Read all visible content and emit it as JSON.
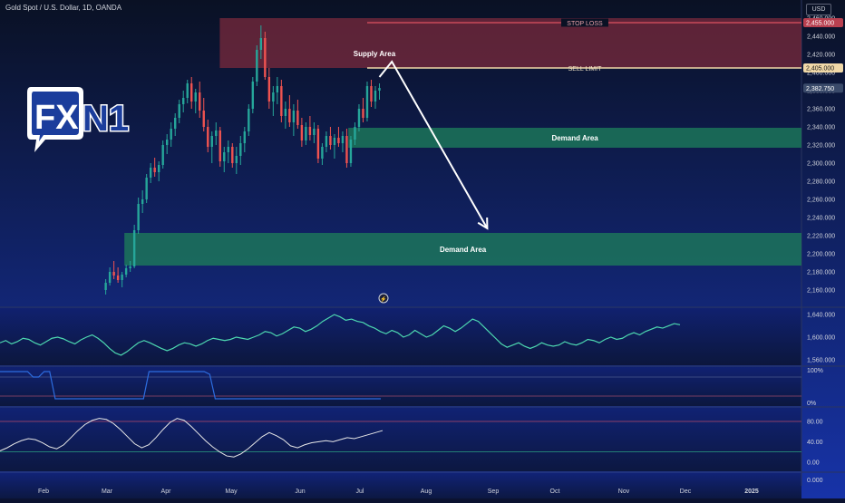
{
  "header": {
    "symbol": "Gold Spot / U.S. Dollar, 1D, OANDA",
    "currency": "USD"
  },
  "logo": {
    "text_left": "FX",
    "text_right": "N1"
  },
  "colors": {
    "background_top": "#0a1124",
    "background_bottom": "#1733a8",
    "candle_up": "#26a69a",
    "candle_down": "#ef5350",
    "supply": "#7a2a3c",
    "demand": "#1d7a5a",
    "stop_loss": "#c94a5a",
    "sell_limit": "#f0d8a8",
    "arrow": "#ffffff",
    "indicator_line": "#4dd8b0"
  },
  "chart_data": [
    {
      "type": "candlestick",
      "ylim": [
        2150,
        2470
      ],
      "yticks": [
        2160,
        2180,
        2200,
        2220,
        2240,
        2260,
        2280,
        2300,
        2320,
        2340,
        2360,
        2380,
        2400,
        2420,
        2440,
        2460
      ],
      "ytick_labels": [
        "2,160.000",
        "2,180.000",
        "2,200.000",
        "2,220.000",
        "2,240.000",
        "2,260.000",
        "2,280.000",
        "2,300.000",
        "2,320.000",
        "2,340.000",
        "2,360.000",
        "2,380.000",
        "2,400.000",
        "2,420.000",
        "2,440.000",
        "2,460.000"
      ],
      "current_price": {
        "value": 2382.75,
        "label": "2,382.750"
      },
      "levels": [
        {
          "name": "stop_loss",
          "value": 2455.0,
          "label": "2,455.000",
          "text": "STOP LOSS"
        },
        {
          "name": "sell_limit",
          "value": 2405.0,
          "label": "2,405.000",
          "text": "SELL LIMIT"
        }
      ],
      "zones": [
        {
          "kind": "supply",
          "text": "Supply Area",
          "low": 2405,
          "high": 2460,
          "start": "2024-04-26"
        },
        {
          "kind": "demand",
          "text": "Demand Area",
          "low": 2317,
          "high": 2339,
          "start": "2024-06-27"
        },
        {
          "kind": "demand",
          "text": "Demand Area",
          "low": 2187,
          "high": 2223,
          "start": "2024-03-11"
        }
      ],
      "projection": [
        {
          "date": "2024-07-12",
          "price": 2395
        },
        {
          "date": "2024-07-18",
          "price": 2412
        },
        {
          "date": "2024-09-02",
          "price": 2228
        }
      ],
      "series": [
        {
          "ohlc": [
            [
              2160,
              2172,
              2155,
              2168
            ],
            [
              2168,
              2185,
              2165,
              2180
            ],
            [
              2180,
              2192,
              2172,
              2176
            ],
            [
              2176,
              2185,
              2168,
              2171
            ],
            [
              2171,
              2180,
              2163,
              2177
            ],
            [
              2177,
              2188,
              2174,
              2184
            ],
            [
              2184,
              2192,
              2180,
              2186
            ],
            [
              2186,
              2232,
              2184,
              2226
            ],
            [
              2226,
              2262,
              2222,
              2255
            ],
            [
              2255,
              2270,
              2245,
              2260
            ],
            [
              2260,
              2288,
              2256,
              2284
            ],
            [
              2284,
              2300,
              2278,
              2295
            ],
            [
              2295,
              2306,
              2285,
              2290
            ],
            [
              2290,
              2302,
              2280,
              2298
            ],
            [
              2298,
              2325,
              2294,
              2320
            ],
            [
              2320,
              2332,
              2310,
              2326
            ],
            [
              2326,
              2345,
              2318,
              2338
            ],
            [
              2338,
              2355,
              2330,
              2350
            ],
            [
              2350,
              2370,
              2344,
              2365
            ],
            [
              2365,
              2380,
              2356,
              2372
            ],
            [
              2372,
              2392,
              2366,
              2388
            ],
            [
              2388,
              2395,
              2360,
              2368
            ],
            [
              2368,
              2382,
              2355,
              2378
            ],
            [
              2378,
              2390,
              2350,
              2358
            ],
            [
              2358,
              2372,
              2335,
              2340
            ],
            [
              2340,
              2348,
              2312,
              2318
            ],
            [
              2318,
              2335,
              2300,
              2330
            ],
            [
              2330,
              2345,
              2320,
              2336
            ],
            [
              2336,
              2340,
              2296,
              2302
            ],
            [
              2302,
              2318,
              2290,
              2312
            ],
            [
              2312,
              2325,
              2300,
              2318
            ],
            [
              2318,
              2322,
              2295,
              2300
            ],
            [
              2300,
              2318,
              2288,
              2308
            ],
            [
              2308,
              2330,
              2298,
              2322
            ],
            [
              2322,
              2340,
              2312,
              2335
            ],
            [
              2335,
              2365,
              2330,
              2360
            ],
            [
              2360,
              2395,
              2355,
              2390
            ],
            [
              2390,
              2430,
              2385,
              2425
            ],
            [
              2425,
              2452,
              2415,
              2438
            ],
            [
              2438,
              2445,
              2392,
              2395
            ],
            [
              2395,
              2405,
              2360,
              2368
            ],
            [
              2368,
              2385,
              2352,
              2378
            ],
            [
              2378,
              2395,
              2365,
              2385
            ],
            [
              2385,
              2392,
              2345,
              2352
            ],
            [
              2352,
              2368,
              2338,
              2360
            ],
            [
              2360,
              2375,
              2340,
              2345
            ],
            [
              2345,
              2365,
              2330,
              2358
            ],
            [
              2358,
              2370,
              2338,
              2342
            ],
            [
              2342,
              2350,
              2318,
              2325
            ],
            [
              2325,
              2345,
              2320,
              2340
            ],
            [
              2340,
              2352,
              2325,
              2331
            ],
            [
              2331,
              2345,
              2322,
              2338
            ],
            [
              2338,
              2342,
              2300,
              2305
            ],
            [
              2305,
              2322,
              2298,
              2318
            ],
            [
              2318,
              2335,
              2312,
              2330
            ],
            [
              2330,
              2340,
              2315,
              2320
            ],
            [
              2320,
              2332,
              2305,
              2328
            ],
            [
              2328,
              2340,
              2318,
              2322
            ],
            [
              2322,
              2335,
              2312,
              2330
            ],
            [
              2330,
              2338,
              2295,
              2300
            ],
            [
              2300,
              2330,
              2296,
              2326
            ],
            [
              2326,
              2345,
              2320,
              2340
            ],
            [
              2340,
              2365,
              2335,
              2360
            ],
            [
              2360,
              2372,
              2345,
              2350
            ],
            [
              2350,
              2390,
              2346,
              2385
            ],
            [
              2385,
              2392,
              2362,
              2368
            ],
            [
              2368,
              2385,
              2360,
              2380
            ],
            [
              2380,
              2388,
              2370,
              2383
            ]
          ]
        }
      ]
    },
    {
      "type": "line",
      "ylim": [
        1550,
        1655
      ],
      "yticks": [
        1560,
        1600,
        1640
      ],
      "ytick_labels": [
        "1,560.000",
        "1,600.000",
        "1,640.000"
      ],
      "series": [
        {
          "values": [
            1590,
            1594,
            1588,
            1592,
            1598,
            1596,
            1590,
            1586,
            1592,
            1598,
            1600,
            1597,
            1592,
            1588,
            1595,
            1600,
            1604,
            1598,
            1590,
            1580,
            1572,
            1568,
            1574,
            1582,
            1590,
            1594,
            1590,
            1585,
            1580,
            1576,
            1580,
            1586,
            1590,
            1588,
            1584,
            1588,
            1594,
            1598,
            1596,
            1594,
            1596,
            1600,
            1598,
            1596,
            1600,
            1604,
            1610,
            1608,
            1602,
            1606,
            1612,
            1618,
            1616,
            1610,
            1614,
            1620,
            1628,
            1634,
            1640,
            1636,
            1630,
            1632,
            1628,
            1626,
            1620,
            1616,
            1610,
            1606,
            1612,
            1608,
            1600,
            1604,
            1612,
            1606,
            1600,
            1604,
            1612,
            1620,
            1616,
            1610,
            1616,
            1624,
            1632,
            1628,
            1618,
            1608,
            1598,
            1588,
            1582,
            1586,
            1590,
            1584,
            1580,
            1584,
            1590,
            1586,
            1584,
            1586,
            1592,
            1588,
            1586,
            1590,
            1596,
            1594,
            1590,
            1596,
            1600,
            1596,
            1598,
            1604,
            1608,
            1604,
            1610,
            1614,
            1618,
            1616,
            1620,
            1624,
            1622
          ]
        }
      ]
    },
    {
      "type": "line",
      "ylim": [
        0,
        100
      ],
      "ytick_labels": [
        "100%",
        "0%"
      ],
      "series": [
        {
          "values": [
            100,
            100,
            100,
            100,
            100,
            100,
            80,
            80,
            100,
            100,
            0,
            0,
            0,
            0,
            0,
            0,
            0,
            0,
            0,
            0,
            0,
            0,
            0,
            0,
            0,
            0,
            0,
            100,
            100,
            100,
            100,
            100,
            100,
            100,
            100,
            100,
            100,
            100,
            90,
            0,
            0,
            0,
            0,
            0,
            0,
            0,
            0,
            0,
            0,
            0,
            0,
            0,
            0,
            0,
            0,
            0,
            0,
            0,
            0,
            0,
            0,
            0,
            0,
            0,
            0,
            0,
            0,
            0,
            0,
            0
          ]
        }
      ]
    },
    {
      "type": "line",
      "ylim": [
        -5,
        95
      ],
      "yticks": [
        0,
        40,
        80
      ],
      "ytick_labels": [
        "0.00",
        "40.00",
        "80.00"
      ],
      "levels": [
        80,
        20
      ],
      "series": [
        {
          "values": [
            22,
            28,
            36,
            42,
            46,
            44,
            38,
            30,
            26,
            34,
            48,
            62,
            74,
            82,
            86,
            84,
            76,
            64,
            50,
            36,
            28,
            34,
            48,
            64,
            78,
            86,
            82,
            70,
            56,
            42,
            30,
            20,
            12,
            10,
            16,
            26,
            38,
            50,
            58,
            52,
            44,
            32,
            28,
            34,
            38,
            40,
            42,
            40,
            44,
            48,
            46,
            50,
            54,
            58,
            62
          ]
        }
      ]
    }
  ],
  "bottom_panel": {
    "tick_label": "0.000"
  },
  "time_axis": {
    "labels": [
      "Feb",
      "Mar",
      "Apr",
      "May",
      "Jun",
      "Jul",
      "Aug",
      "Sep",
      "Oct",
      "Nov",
      "Dec",
      "2025"
    ]
  }
}
